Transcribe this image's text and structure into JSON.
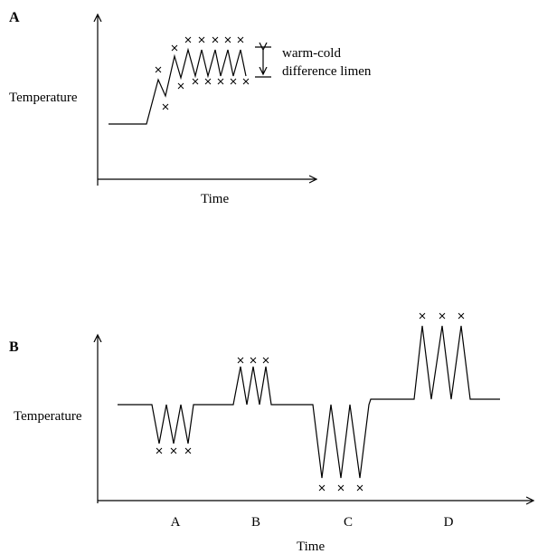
{
  "panel_a": {
    "label": "A",
    "y_axis_label": "Temperature",
    "x_axis_label": "Time",
    "annotation": [
      "warm-cold",
      "difference limen"
    ]
  },
  "panel_b": {
    "label": "B",
    "y_axis_label": "Temperature",
    "x_axis_label": "Time",
    "conditions": [
      "A",
      "B",
      "C",
      "D"
    ]
  }
}
